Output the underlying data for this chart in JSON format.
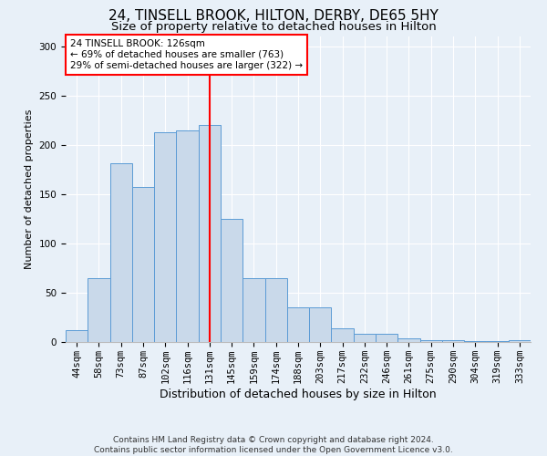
{
  "title1": "24, TINSELL BROOK, HILTON, DERBY, DE65 5HY",
  "title2": "Size of property relative to detached houses in Hilton",
  "xlabel": "Distribution of detached houses by size in Hilton",
  "ylabel": "Number of detached properties",
  "footer": "Contains HM Land Registry data © Crown copyright and database right 2024.\nContains public sector information licensed under the Open Government Licence v3.0.",
  "bar_labels": [
    "44sqm",
    "58sqm",
    "73sqm",
    "87sqm",
    "102sqm",
    "116sqm",
    "131sqm",
    "145sqm",
    "159sqm",
    "174sqm",
    "188sqm",
    "203sqm",
    "217sqm",
    "232sqm",
    "246sqm",
    "261sqm",
    "275sqm",
    "290sqm",
    "304sqm",
    "319sqm",
    "333sqm"
  ],
  "bar_values": [
    12,
    65,
    181,
    157,
    213,
    215,
    220,
    125,
    65,
    65,
    35,
    35,
    14,
    8,
    8,
    4,
    2,
    2,
    1,
    1,
    2
  ],
  "bar_color": "#c9d9ea",
  "bar_edge_color": "#5b9bd5",
  "bar_width": 1.0,
  "vline_color": "red",
  "vline_x": 6.0,
  "annotation_text": "24 TINSELL BROOK: 126sqm\n← 69% of detached houses are smaller (763)\n29% of semi-detached houses are larger (322) →",
  "annotation_box_color": "white",
  "annotation_box_edge": "red",
  "ylim": [
    0,
    310
  ],
  "yticks": [
    0,
    50,
    100,
    150,
    200,
    250,
    300
  ],
  "background_color": "#e8f0f8",
  "plot_bg_color": "#e8f0f8",
  "title1_fontsize": 11,
  "title2_fontsize": 9.5,
  "xlabel_fontsize": 9,
  "ylabel_fontsize": 8,
  "tick_fontsize": 7.5,
  "footer_fontsize": 6.5
}
